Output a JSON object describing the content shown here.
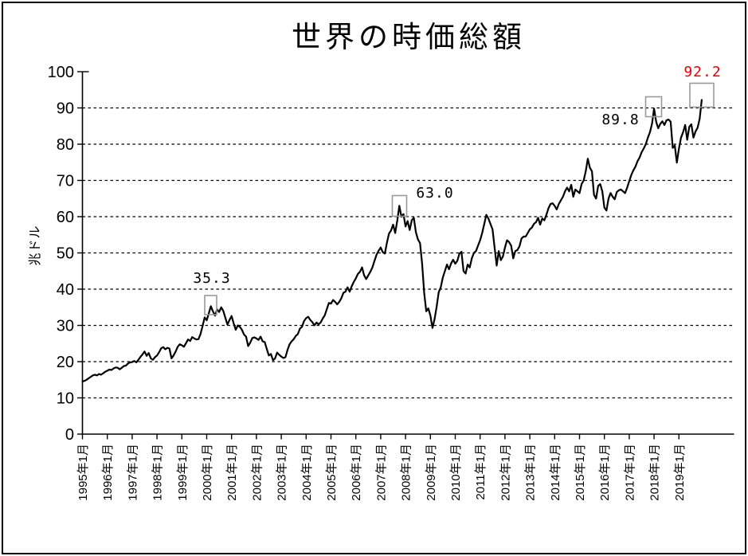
{
  "page": {
    "background": "#ffffff",
    "border_color": "#000000"
  },
  "chart_data": {
    "type": "line",
    "title": "世界の時価総額",
    "ylabel": "兆ドル",
    "ylim": [
      0,
      100
    ],
    "yticks": [
      0,
      10,
      20,
      30,
      40,
      50,
      60,
      70,
      80,
      90,
      100
    ],
    "grid": "horizontal-dashed",
    "legend": "none",
    "x_interval": "monthly",
    "x_start_label": "1995年1月",
    "x_tick_labels": [
      "1995年1月",
      "1996年1月",
      "1997年1月",
      "1998年1月",
      "1999年1月",
      "2000年1月",
      "2001年1月",
      "2002年1月",
      "2003年1月",
      "2004年1月",
      "2005年1月",
      "2006年1月",
      "2007年1月",
      "2008年1月",
      "2009年1月",
      "2010年1月",
      "2011年1月",
      "2012年1月",
      "2013年1月",
      "2014年1月",
      "2015年1月",
      "2016年1月",
      "2017年1月",
      "2018年1月",
      "2019年1月"
    ],
    "series": [
      {
        "color": "#000000",
        "values": [
          14.5,
          14.7,
          15.0,
          15.4,
          15.8,
          16.2,
          16.4,
          16.2,
          16.6,
          16.4,
          16.8,
          17.2,
          17.5,
          17.8,
          17.7,
          18.1,
          18.4,
          18.3,
          17.9,
          18.3,
          18.8,
          18.9,
          19.5,
          19.8,
          19.9,
          20.2,
          19.8,
          20.5,
          21.3,
          22.0,
          22.8,
          21.6,
          22.4,
          20.9,
          20.5,
          21.2,
          21.7,
          22.6,
          23.7,
          24.0,
          23.4,
          23.8,
          23.6,
          20.9,
          21.7,
          22.8,
          24.1,
          24.8,
          24.5,
          24.1,
          25.1,
          26.1,
          25.7,
          26.8,
          26.4,
          26.1,
          26.2,
          27.6,
          29.8,
          32.2,
          31.4,
          33.3,
          35.3,
          33.9,
          32.7,
          34.4,
          33.7,
          35.0,
          34.0,
          32.1,
          30.2,
          31.5,
          32.6,
          30.6,
          28.8,
          30.0,
          29.6,
          28.8,
          27.5,
          26.9,
          24.3,
          25.2,
          26.5,
          26.7,
          26.4,
          26.0,
          26.9,
          25.6,
          25.4,
          23.5,
          21.7,
          22.1,
          20.4,
          20.9,
          22.5,
          21.9,
          21.4,
          21.0,
          21.2,
          23.2,
          24.8,
          25.6,
          26.2,
          27.1,
          27.6,
          29.1,
          29.6,
          31.2,
          32.0,
          32.4,
          31.5,
          30.9,
          30.0,
          30.8,
          30.3,
          30.8,
          31.9,
          32.8,
          34.5,
          36.2,
          36.0,
          37.0,
          36.5,
          35.8,
          36.5,
          37.5,
          39.0,
          39.3,
          40.5,
          39.3,
          40.8,
          42.0,
          43.0,
          44.2,
          44.8,
          46.0,
          43.8,
          42.8,
          43.8,
          44.8,
          46.0,
          47.8,
          49.5,
          50.6,
          51.5,
          50.2,
          49.8,
          52.8,
          55.3,
          56.2,
          57.8,
          55.5,
          58.9,
          63.0,
          60.0,
          60.7,
          57.3,
          58.8,
          56.3,
          59.0,
          59.7,
          55.7,
          53.7,
          52.7,
          47.0,
          39.0,
          33.9,
          34.7,
          32.7,
          29.3,
          31.7,
          35.1,
          39.1,
          40.5,
          43.2,
          45.0,
          46.8,
          45.5,
          47.1,
          48.1,
          47.0,
          47.8,
          49.8,
          50.3,
          45.0,
          44.3,
          46.8,
          46.0,
          48.5,
          50.0,
          50.5,
          52.0,
          53.5,
          55.5,
          58.0,
          60.5,
          59.5,
          58.0,
          56.5,
          51.5,
          46.5,
          50.5,
          48.0,
          49.0,
          51.5,
          53.5,
          53.0,
          52.0,
          48.5,
          50.5,
          50.8,
          51.8,
          54.0,
          54.5,
          54.5,
          55.5,
          56.5,
          57.0,
          58.0,
          58.5,
          59.7,
          57.8,
          59.5,
          59.0,
          60.5,
          62.3,
          63.5,
          63.7,
          63.0,
          62.0,
          63.5,
          64.5,
          65.5,
          67.0,
          68.0,
          67.0,
          68.8,
          65.5,
          67.5,
          67.0,
          66.5,
          69.0,
          70.0,
          72.5,
          76.0,
          73.5,
          72.5,
          66.0,
          65.0,
          68.5,
          69.0,
          67.0,
          62.5,
          61.7,
          65.0,
          66.5,
          65.5,
          64.8,
          66.8,
          67.3,
          67.5,
          67.0,
          66.5,
          68.0,
          69.8,
          71.5,
          72.8,
          73.8,
          75.3,
          76.3,
          77.8,
          78.8,
          80.0,
          81.8,
          83.3,
          85.6,
          89.8,
          86.2,
          84.4,
          85.6,
          86.3,
          85.3,
          86.6,
          86.8,
          86.2,
          79.0,
          79.6,
          74.9,
          78.8,
          81.8,
          83.3,
          85.3,
          81.2,
          84.8,
          85.5,
          81.8,
          83.5,
          84.5,
          87.0,
          92.2
        ]
      }
    ],
    "annotations": [
      {
        "label": "35.3",
        "index": 62,
        "color": "#000000",
        "boxed": true
      },
      {
        "label": "63.0",
        "index": 153,
        "color": "#000000",
        "boxed": true
      },
      {
        "label": "89.8",
        "index": 276,
        "color": "#000000",
        "boxed": true
      },
      {
        "label": "92.2",
        "index": 299,
        "color": "#e60000",
        "boxed": true
      }
    ]
  }
}
